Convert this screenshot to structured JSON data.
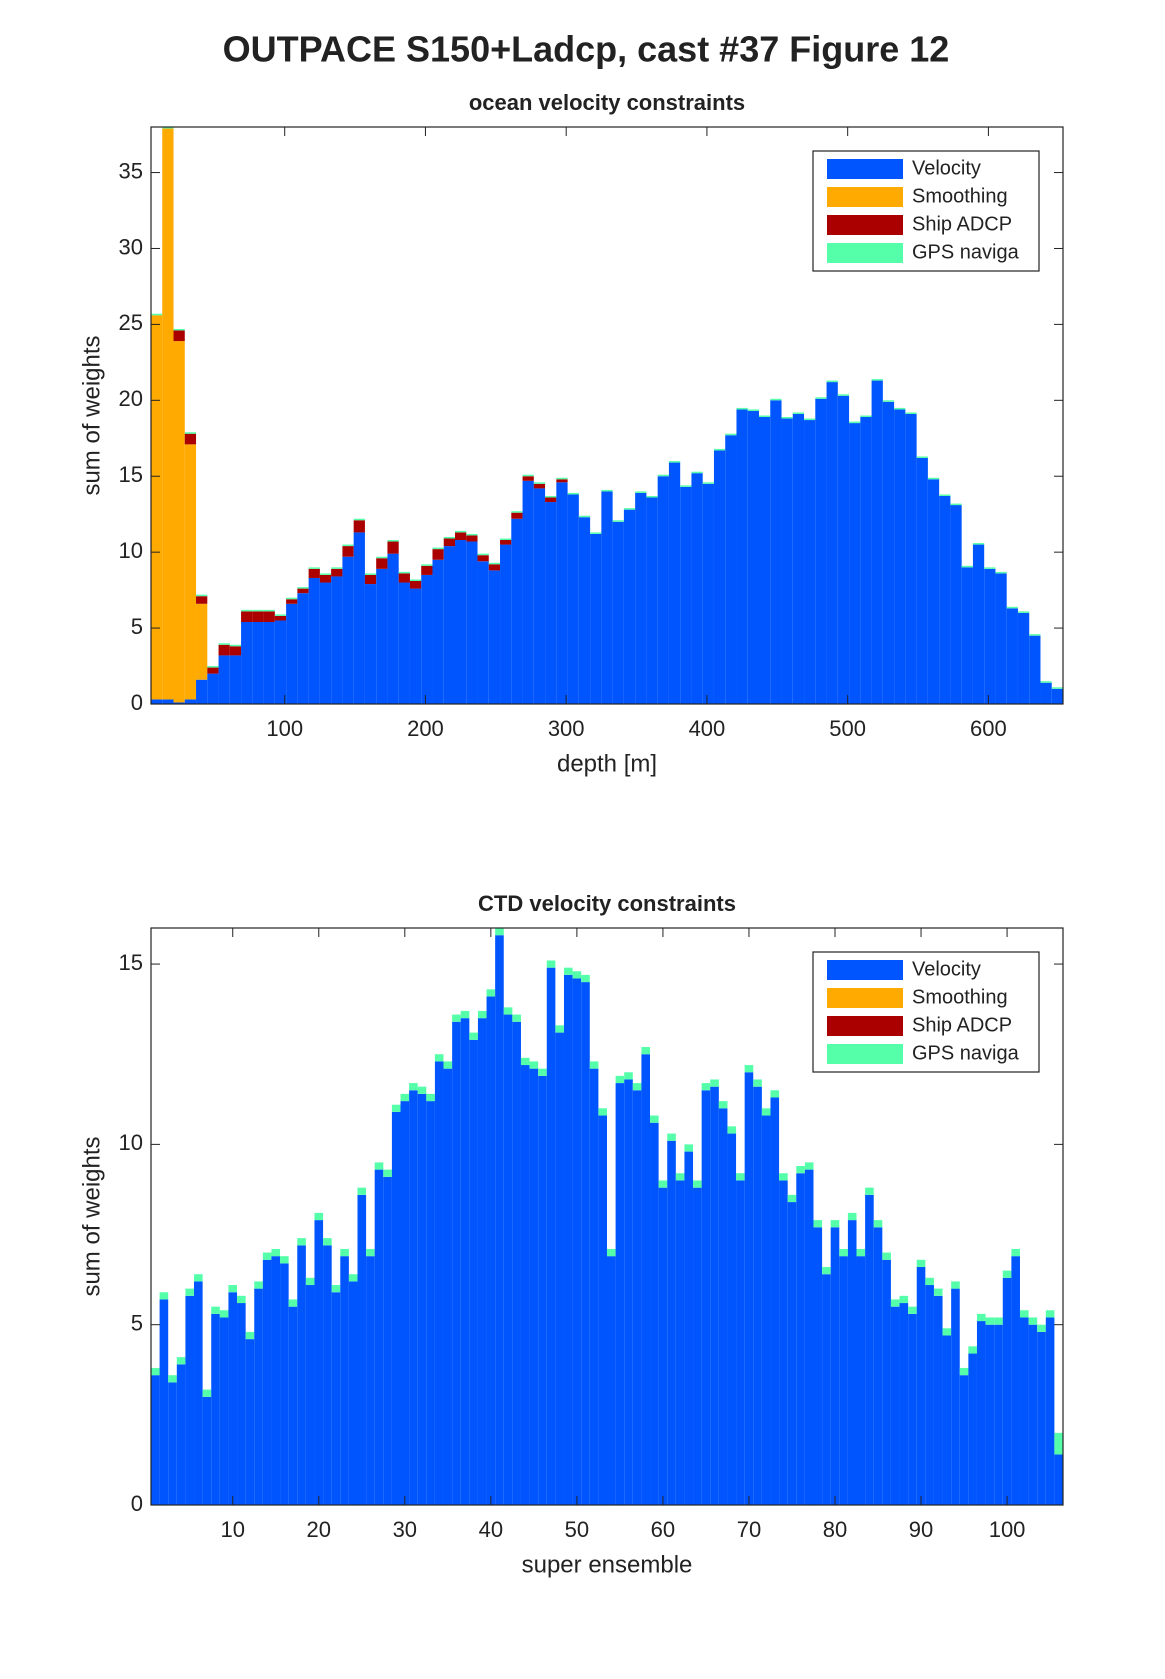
{
  "title": "OUTPACE S150+Ladcp, cast #37  Figure 12",
  "chart_data": [
    {
      "type": "histogram",
      "title": "ocean velocity constraints",
      "xlabel": "depth [m]",
      "ylabel": "sum of weights",
      "legend": "northeast",
      "stacked": true,
      "bins": [
        5,
        13,
        21,
        29,
        37,
        45,
        53,
        61,
        69,
        77,
        85,
        93,
        101,
        109,
        117,
        125,
        133,
        141,
        149,
        157,
        165,
        173,
        181,
        189,
        197,
        205,
        213,
        221,
        229,
        237,
        245,
        253,
        261,
        269,
        277,
        285,
        293,
        301,
        309,
        317,
        325,
        333,
        341,
        349,
        357,
        365,
        373,
        381,
        389,
        397,
        405,
        413,
        421,
        429,
        437,
        445,
        453,
        461,
        469,
        477,
        485,
        493,
        501,
        509,
        517,
        525,
        533,
        541,
        549,
        557,
        565,
        573,
        581,
        589,
        597,
        605,
        613,
        621,
        629,
        637,
        645,
        653
      ],
      "xlim": [
        5,
        653
      ],
      "xticks": [
        100,
        200,
        300,
        400,
        500,
        600
      ],
      "ylim": [
        0,
        38
      ],
      "yticks": [
        0,
        5,
        10,
        15,
        20,
        25,
        30,
        35
      ],
      "series": [
        {
          "name": "Velocity",
          "color": "#0055ff",
          "values": [
            0.3,
            0.3,
            0.1,
            0.3,
            1.6,
            2.0,
            3.2,
            3.2,
            5.4,
            5.4,
            5.4,
            5.5,
            6.6,
            7.3,
            8.3,
            8.0,
            8.4,
            9.7,
            11.3,
            7.9,
            8.9,
            9.9,
            8.0,
            7.6,
            8.5,
            9.5,
            10.4,
            10.8,
            10.7,
            9.4,
            8.8,
            10.5,
            12.2,
            14.7,
            14.2,
            13.3,
            14.6,
            13.8,
            12.3,
            11.2,
            14.0,
            12.0,
            12.8,
            13.9,
            13.6,
            15.0,
            15.9,
            14.3,
            15.2,
            14.5,
            16.7,
            17.7,
            19.4,
            19.3,
            18.9,
            20.0,
            18.8,
            19.1,
            18.7,
            20.1,
            21.2,
            20.3,
            18.5,
            18.9,
            21.3,
            19.9,
            19.4,
            19.1,
            16.2,
            14.8,
            13.7,
            13.1,
            9.0,
            10.5,
            8.9,
            8.6,
            6.3,
            6.0,
            4.5,
            1.4,
            1.0
          ]
        },
        {
          "name": "Smoothing",
          "color": "#ffaa00",
          "values": [
            25.3,
            37.6,
            23.8,
            16.8,
            5.0,
            0,
            0,
            0,
            0,
            0,
            0,
            0,
            0,
            0,
            0,
            0,
            0,
            0,
            0,
            0,
            0,
            0,
            0,
            0,
            0,
            0,
            0,
            0,
            0,
            0,
            0,
            0,
            0,
            0,
            0,
            0,
            0,
            0,
            0,
            0,
            0,
            0,
            0,
            0,
            0,
            0,
            0,
            0,
            0,
            0,
            0,
            0,
            0,
            0,
            0,
            0,
            0,
            0,
            0,
            0,
            0,
            0,
            0,
            0,
            0,
            0,
            0,
            0,
            0,
            0,
            0,
            0,
            0,
            0,
            0,
            0,
            0,
            0,
            0,
            0,
            0
          ]
        },
        {
          "name": "Ship ADCP",
          "color": "#aa0000",
          "values": [
            0,
            0,
            0.7,
            0.7,
            0.5,
            0.4,
            0.7,
            0.6,
            0.7,
            0.7,
            0.7,
            0.3,
            0.3,
            0.3,
            0.6,
            0.5,
            0.5,
            0.7,
            0.8,
            0.6,
            0.7,
            0.8,
            0.6,
            0.5,
            0.6,
            0.7,
            0.5,
            0.5,
            0.4,
            0.4,
            0.4,
            0.3,
            0.4,
            0.3,
            0.3,
            0.3,
            0.2,
            0,
            0,
            0,
            0,
            0,
            0,
            0,
            0,
            0,
            0,
            0,
            0,
            0,
            0,
            0,
            0,
            0,
            0,
            0,
            0,
            0,
            0,
            0,
            0,
            0,
            0,
            0,
            0,
            0,
            0,
            0,
            0,
            0,
            0,
            0,
            0,
            0,
            0,
            0,
            0,
            0,
            0,
            0,
            0
          ]
        },
        {
          "name": "GPS naviga",
          "color": "#55ffaa",
          "values": [
            0.1,
            0.1,
            0.1,
            0.1,
            0.1,
            0.1,
            0.1,
            0.1,
            0.1,
            0.1,
            0.1,
            0.1,
            0.1,
            0.1,
            0.1,
            0.1,
            0.1,
            0.1,
            0.1,
            0.1,
            0.1,
            0.1,
            0.1,
            0.1,
            0.1,
            0.1,
            0.1,
            0.1,
            0.1,
            0.1,
            0.1,
            0.1,
            0.1,
            0.1,
            0.1,
            0.1,
            0.1,
            0.1,
            0.1,
            0.1,
            0.1,
            0.1,
            0.1,
            0.1,
            0.1,
            0.1,
            0.1,
            0.1,
            0.1,
            0.1,
            0.1,
            0.1,
            0.1,
            0.1,
            0.1,
            0.1,
            0.1,
            0.1,
            0.1,
            0.1,
            0.1,
            0.1,
            0.1,
            0.1,
            0.1,
            0.1,
            0.1,
            0.1,
            0.1,
            0.1,
            0.1,
            0.1,
            0.1,
            0.1,
            0.1,
            0.1,
            0.1,
            0.1,
            0.1,
            0.1,
            0.1
          ]
        }
      ]
    },
    {
      "type": "bar",
      "title": "CTD velocity constraints",
      "xlabel": "super ensemble",
      "ylabel": "sum of weights",
      "legend": "northeast",
      "stacked": true,
      "x": [
        1,
        2,
        3,
        4,
        5,
        6,
        7,
        8,
        9,
        10,
        11,
        12,
        13,
        14,
        15,
        16,
        17,
        18,
        19,
        20,
        21,
        22,
        23,
        24,
        25,
        26,
        27,
        28,
        29,
        30,
        31,
        32,
        33,
        34,
        35,
        36,
        37,
        38,
        39,
        40,
        41,
        42,
        43,
        44,
        45,
        46,
        47,
        48,
        49,
        50,
        51,
        52,
        53,
        54,
        55,
        56,
        57,
        58,
        59,
        60,
        61,
        62,
        63,
        64,
        65,
        66,
        67,
        68,
        69,
        70,
        71,
        72,
        73,
        74,
        75,
        76,
        77,
        78,
        79,
        80,
        81,
        82,
        83,
        84,
        85,
        86,
        87,
        88,
        89,
        90,
        91,
        92,
        93,
        94,
        95,
        96,
        97,
        98,
        99,
        100,
        101,
        102,
        103,
        104,
        105,
        106
      ],
      "xlim": [
        0.5,
        106.5
      ],
      "xticks": [
        10,
        20,
        30,
        40,
        50,
        60,
        70,
        80,
        90,
        100
      ],
      "ylim": [
        0,
        16
      ],
      "yticks": [
        0,
        5,
        10,
        15
      ],
      "series": [
        {
          "name": "Velocity",
          "color": "#0055ff",
          "values": [
            3.6,
            5.7,
            3.4,
            3.9,
            5.8,
            6.2,
            3.0,
            5.3,
            5.2,
            5.9,
            5.6,
            4.6,
            6.0,
            6.8,
            6.9,
            6.7,
            5.5,
            7.2,
            6.1,
            7.9,
            7.2,
            5.9,
            6.9,
            6.2,
            8.6,
            6.9,
            9.3,
            9.1,
            10.9,
            11.2,
            11.5,
            11.4,
            11.2,
            12.3,
            12.1,
            13.4,
            13.5,
            12.9,
            13.5,
            14.1,
            15.8,
            13.6,
            13.4,
            12.2,
            12.1,
            11.9,
            14.9,
            13.1,
            14.7,
            14.6,
            14.5,
            12.1,
            10.8,
            6.9,
            11.7,
            11.8,
            11.5,
            12.5,
            10.6,
            8.8,
            10.1,
            9.0,
            9.8,
            8.8,
            11.5,
            11.6,
            11.0,
            10.3,
            9.0,
            12.0,
            11.6,
            10.8,
            11.3,
            9.0,
            8.4,
            9.2,
            9.3,
            7.7,
            6.4,
            7.7,
            6.9,
            7.9,
            6.9,
            8.6,
            7.7,
            6.8,
            5.5,
            5.6,
            5.3,
            6.6,
            6.1,
            5.8,
            4.7,
            6.0,
            3.6,
            4.2,
            5.1,
            5.0,
            5.0,
            6.3,
            6.9,
            5.2,
            5.0,
            4.8,
            5.2,
            1.4
          ]
        },
        {
          "name": "Smoothing",
          "color": "#ffaa00",
          "values": [
            0,
            0,
            0,
            0,
            0,
            0,
            0,
            0,
            0,
            0,
            0,
            0,
            0,
            0,
            0,
            0,
            0,
            0,
            0,
            0,
            0,
            0,
            0,
            0,
            0,
            0,
            0,
            0,
            0,
            0,
            0,
            0,
            0,
            0,
            0,
            0,
            0,
            0,
            0,
            0,
            0,
            0,
            0,
            0,
            0,
            0,
            0,
            0,
            0,
            0,
            0,
            0,
            0,
            0,
            0,
            0,
            0,
            0,
            0,
            0,
            0,
            0,
            0,
            0,
            0,
            0,
            0,
            0,
            0,
            0,
            0,
            0,
            0,
            0,
            0,
            0,
            0,
            0,
            0,
            0,
            0,
            0,
            0,
            0,
            0,
            0,
            0,
            0,
            0,
            0,
            0,
            0,
            0,
            0,
            0,
            0,
            0,
            0,
            0,
            0,
            0,
            0,
            0,
            0,
            0,
            0
          ]
        },
        {
          "name": "Ship ADCP",
          "color": "#aa0000",
          "values": [
            0,
            0,
            0,
            0,
            0,
            0,
            0,
            0,
            0,
            0,
            0,
            0,
            0,
            0,
            0,
            0,
            0,
            0,
            0,
            0,
            0,
            0,
            0,
            0,
            0,
            0,
            0,
            0,
            0,
            0,
            0,
            0,
            0,
            0,
            0,
            0,
            0,
            0,
            0,
            0,
            0,
            0,
            0,
            0,
            0,
            0,
            0,
            0,
            0,
            0,
            0,
            0,
            0,
            0,
            0,
            0,
            0,
            0,
            0,
            0,
            0,
            0,
            0,
            0,
            0,
            0,
            0,
            0,
            0,
            0,
            0,
            0,
            0,
            0,
            0,
            0,
            0,
            0,
            0,
            0,
            0,
            0,
            0,
            0,
            0,
            0,
            0,
            0,
            0,
            0,
            0,
            0,
            0,
            0,
            0,
            0,
            0,
            0,
            0,
            0,
            0,
            0,
            0,
            0,
            0,
            0
          ]
        },
        {
          "name": "GPS naviga",
          "color": "#55ffaa",
          "values": [
            0.2,
            0.2,
            0.2,
            0.2,
            0.2,
            0.2,
            0.2,
            0.2,
            0.2,
            0.2,
            0.2,
            0.2,
            0.2,
            0.2,
            0.2,
            0.2,
            0.2,
            0.2,
            0.2,
            0.2,
            0.2,
            0.2,
            0.2,
            0.2,
            0.2,
            0.2,
            0.2,
            0.2,
            0.2,
            0.2,
            0.2,
            0.2,
            0.2,
            0.2,
            0.2,
            0.2,
            0.2,
            0.2,
            0.2,
            0.2,
            0.2,
            0.2,
            0.2,
            0.2,
            0.2,
            0.2,
            0.2,
            0.2,
            0.2,
            0.2,
            0.2,
            0.2,
            0.2,
            0.2,
            0.2,
            0.2,
            0.2,
            0.2,
            0.2,
            0.2,
            0.2,
            0.2,
            0.2,
            0.2,
            0.2,
            0.2,
            0.2,
            0.2,
            0.2,
            0.2,
            0.2,
            0.2,
            0.2,
            0.2,
            0.2,
            0.2,
            0.2,
            0.2,
            0.2,
            0.2,
            0.2,
            0.2,
            0.2,
            0.2,
            0.2,
            0.2,
            0.2,
            0.2,
            0.2,
            0.2,
            0.2,
            0.2,
            0.2,
            0.2,
            0.2,
            0.2,
            0.2,
            0.2,
            0.2,
            0.2,
            0.2,
            0.2,
            0.2,
            0.2,
            0.2,
            0.6
          ]
        }
      ]
    }
  ]
}
